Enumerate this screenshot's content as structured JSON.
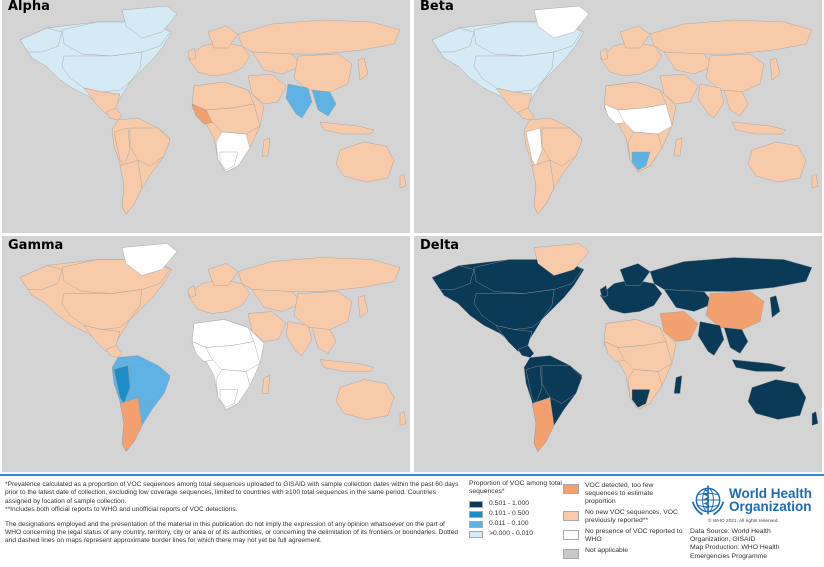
{
  "panels": {
    "alpha": {
      "title": "Alpha"
    },
    "beta": {
      "title": "Beta"
    },
    "gamma": {
      "title": "Gamma"
    },
    "delta": {
      "title": "Delta"
    }
  },
  "colors": {
    "background": "#d4d4d4",
    "vlow": "#d4ebf6",
    "low": "#5fb3e4",
    "mid": "#1f8cc8",
    "high": "#0b3a57",
    "detected_few": "#f2a070",
    "previously": "#f7cba9",
    "no_presence": "#ffffff",
    "na": "#c8c8c8",
    "divider": "#2a8fc7",
    "who_blue": "#1c6cb5"
  },
  "notes": {
    "p1": "*Prevalence calculated as a proportion of VOC sequences among total sequences uploaded to GISAID with sample collection dates within the past 60 days prior to the latest date of collection, excluding low coverage sequences, limited to countries with ≥100 total sequences in the same period. Countries assigned by location of sample collection.",
    "p2": "**Includes both official reports to WHO and unofficial reports of VOC detections.",
    "p3": "The designations employed and the presentation of the material in this publication do not imply the expression of any opinion whatsoever on the part of WHO concerning the legal status of any country, territory, city or area or of its authorities, or concerning the delimitation of its frontiers or boundaries. Dotted and dashed lines on maps represent approximate border lines for which there may not yet be full agreement."
  },
  "legend": {
    "title": "Proportion of VOC among total sequences*",
    "items": [
      {
        "label": "0.501 - 1.000",
        "color": "#0b3a57"
      },
      {
        "label": "0.101 - 0.500",
        "color": "#1f8cc8"
      },
      {
        "label": "0.011  - 0.100",
        "color": "#5fb3e4"
      },
      {
        "label": ">0.000 - 0.010",
        "color": "#d4ebf6"
      }
    ],
    "categories": [
      {
        "label": "VOC detected, too few sequences to estimate proportion",
        "color": "#f2a070"
      },
      {
        "label": "No new VOC sequences, VOC previously reported**",
        "color": "#f7cba9"
      },
      {
        "label": "No presence of VOC reported to WHO",
        "color": "#ffffff"
      },
      {
        "label": "Not applicable",
        "color": "#c8c8c8"
      }
    ]
  },
  "who": {
    "name_line1": "World Health",
    "name_line2": "Organization",
    "copyright": "© WHO 2021, All rights reserved.",
    "source_line1": "Data Source: World Health",
    "source_line2": "Organization, GISAID",
    "production_line1": "Map Production: WHO Health",
    "production_line2": "Emergencies Programme"
  }
}
